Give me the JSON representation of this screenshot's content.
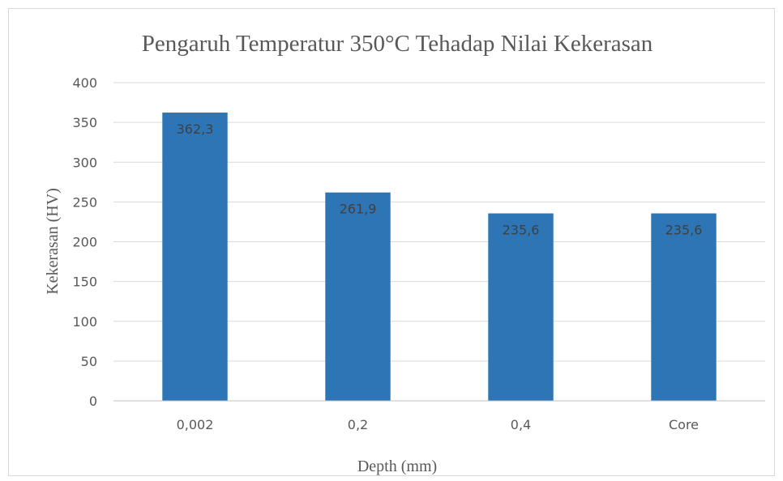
{
  "chart_data": {
    "type": "bar",
    "title": "Pengaruh Temperatur 350°C Tehadap Nilai Kekerasan",
    "xlabel": "Depth (mm)",
    "ylabel": "Kekerasan (HV)",
    "categories": [
      "0,002",
      "0,2",
      "0,4",
      "Core"
    ],
    "values": [
      362.3,
      261.9,
      235.6,
      235.6
    ],
    "data_labels": [
      "362,3",
      "261,9",
      "235,6",
      "235,6"
    ],
    "ylim": [
      0,
      400
    ],
    "yticks": [
      0,
      50,
      100,
      150,
      200,
      250,
      300,
      350,
      400
    ],
    "grid": true,
    "legend": "none",
    "bar_color": "#2e75b6"
  }
}
